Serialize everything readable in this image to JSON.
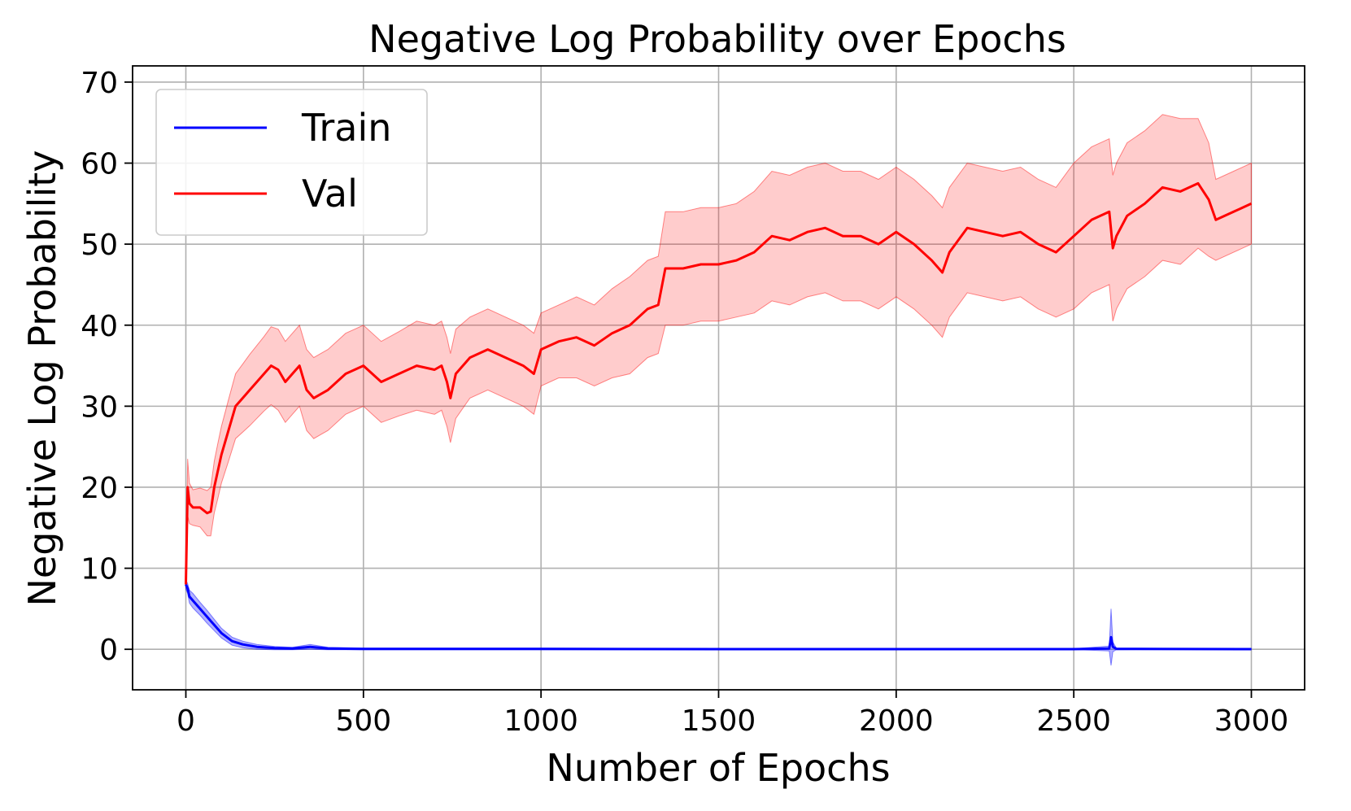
{
  "chart_data": {
    "type": "line",
    "title": "Negative Log Probability over Epochs",
    "xlabel": "Number of Epochs",
    "ylabel": "Negative Log Probability",
    "xlim": [
      -150,
      3150
    ],
    "ylim": [
      -5,
      72
    ],
    "xticks": [
      0,
      500,
      1000,
      1500,
      2000,
      2500,
      3000
    ],
    "xtick_labels": [
      "0",
      "500",
      "1000",
      "1500",
      "2000",
      "2500",
      "3000"
    ],
    "yticks": [
      0,
      10,
      20,
      30,
      40,
      50,
      60,
      70
    ],
    "ytick_labels": [
      "0",
      "10",
      "20",
      "30",
      "40",
      "50",
      "60",
      "70"
    ],
    "grid": true,
    "legend_position": "top-left",
    "series": [
      {
        "name": "Train",
        "color": "#0000ff",
        "x": [
          0,
          5,
          10,
          20,
          40,
          60,
          80,
          100,
          130,
          160,
          200,
          250,
          300,
          350,
          400,
          500,
          700,
          1000,
          1500,
          2000,
          2500,
          2600,
          2605,
          2610,
          2620,
          3000
        ],
        "y": [
          8,
          7.5,
          6.5,
          6,
          5,
          4,
          3,
          2,
          1,
          0.6,
          0.3,
          0.15,
          0.1,
          0.3,
          0.1,
          0.05,
          0.05,
          0.05,
          0.02,
          0.02,
          0.02,
          0.1,
          1.5,
          0.3,
          0.05,
          0.02
        ],
        "band": [
          0.6,
          0.6,
          0.8,
          0.9,
          0.8,
          0.8,
          0.7,
          0.6,
          0.5,
          0.4,
          0.3,
          0.2,
          0.15,
          0.3,
          0.15,
          0.1,
          0.1,
          0.1,
          0.05,
          0.05,
          0.05,
          0.3,
          3.5,
          0.6,
          0.1,
          0.05
        ]
      },
      {
        "name": "Val",
        "color": "#ff0000",
        "x": [
          0,
          5,
          10,
          20,
          40,
          60,
          70,
          80,
          90,
          100,
          120,
          140,
          160,
          180,
          200,
          220,
          240,
          260,
          280,
          300,
          320,
          340,
          360,
          380,
          400,
          450,
          500,
          550,
          600,
          650,
          700,
          720,
          735,
          745,
          760,
          800,
          850,
          900,
          950,
          980,
          1000,
          1050,
          1100,
          1150,
          1200,
          1250,
          1300,
          1330,
          1350,
          1400,
          1450,
          1500,
          1550,
          1600,
          1650,
          1700,
          1750,
          1800,
          1850,
          1900,
          1950,
          2000,
          2050,
          2100,
          2130,
          2150,
          2200,
          2250,
          2300,
          2350,
          2400,
          2450,
          2500,
          2550,
          2600,
          2610,
          2620,
          2650,
          2700,
          2750,
          2800,
          2850,
          2880,
          2900,
          2950,
          3000
        ],
        "y": [
          8,
          20,
          18,
          17.5,
          17.5,
          16.8,
          17,
          20,
          22,
          24,
          27,
          30,
          31,
          32,
          33,
          34,
          35,
          34.5,
          33,
          34,
          35,
          32,
          31,
          31.5,
          32,
          34,
          35,
          33,
          34,
          35,
          34.5,
          35,
          33,
          31,
          34,
          36,
          37,
          36,
          35,
          34,
          37,
          38,
          38.5,
          37.5,
          39,
          40,
          42,
          42.5,
          47,
          47,
          47.5,
          47.5,
          48,
          49,
          51,
          50.5,
          51.5,
          52,
          51,
          51,
          50,
          51.5,
          50,
          48,
          46.5,
          49,
          52,
          51.5,
          51,
          51.5,
          50,
          49,
          51,
          53,
          54,
          49.5,
          51,
          53.5,
          55,
          57,
          56.5,
          57.5,
          55.5,
          53,
          54,
          55
        ],
        "band": [
          0.5,
          3.5,
          2.5,
          2.2,
          2.4,
          2.8,
          3.0,
          3.2,
          3.4,
          3.5,
          3.8,
          4.0,
          4.2,
          4.4,
          4.5,
          4.6,
          4.8,
          5.0,
          5.0,
          5.0,
          5.0,
          5.0,
          5.0,
          5.0,
          5.0,
          5.0,
          5.0,
          5.0,
          5.2,
          5.5,
          5.5,
          5.5,
          5.5,
          5.5,
          5.5,
          5.0,
          5.0,
          5.0,
          5.0,
          5.0,
          4.5,
          4.5,
          5.0,
          5.0,
          5.5,
          6.0,
          6.0,
          6.0,
          7.0,
          7.0,
          7.0,
          7.0,
          7.0,
          7.5,
          8.0,
          8.0,
          8.0,
          8.0,
          8.0,
          8.0,
          8.0,
          8.0,
          8.0,
          8.0,
          8.0,
          8.0,
          8.0,
          8.0,
          8.0,
          8.0,
          8.0,
          8.0,
          9.0,
          9.0,
          9.0,
          9.0,
          9.0,
          9.0,
          9.0,
          9.0,
          9.0,
          8.0,
          7.0,
          5.0,
          5.0,
          5.0
        ]
      }
    ]
  }
}
